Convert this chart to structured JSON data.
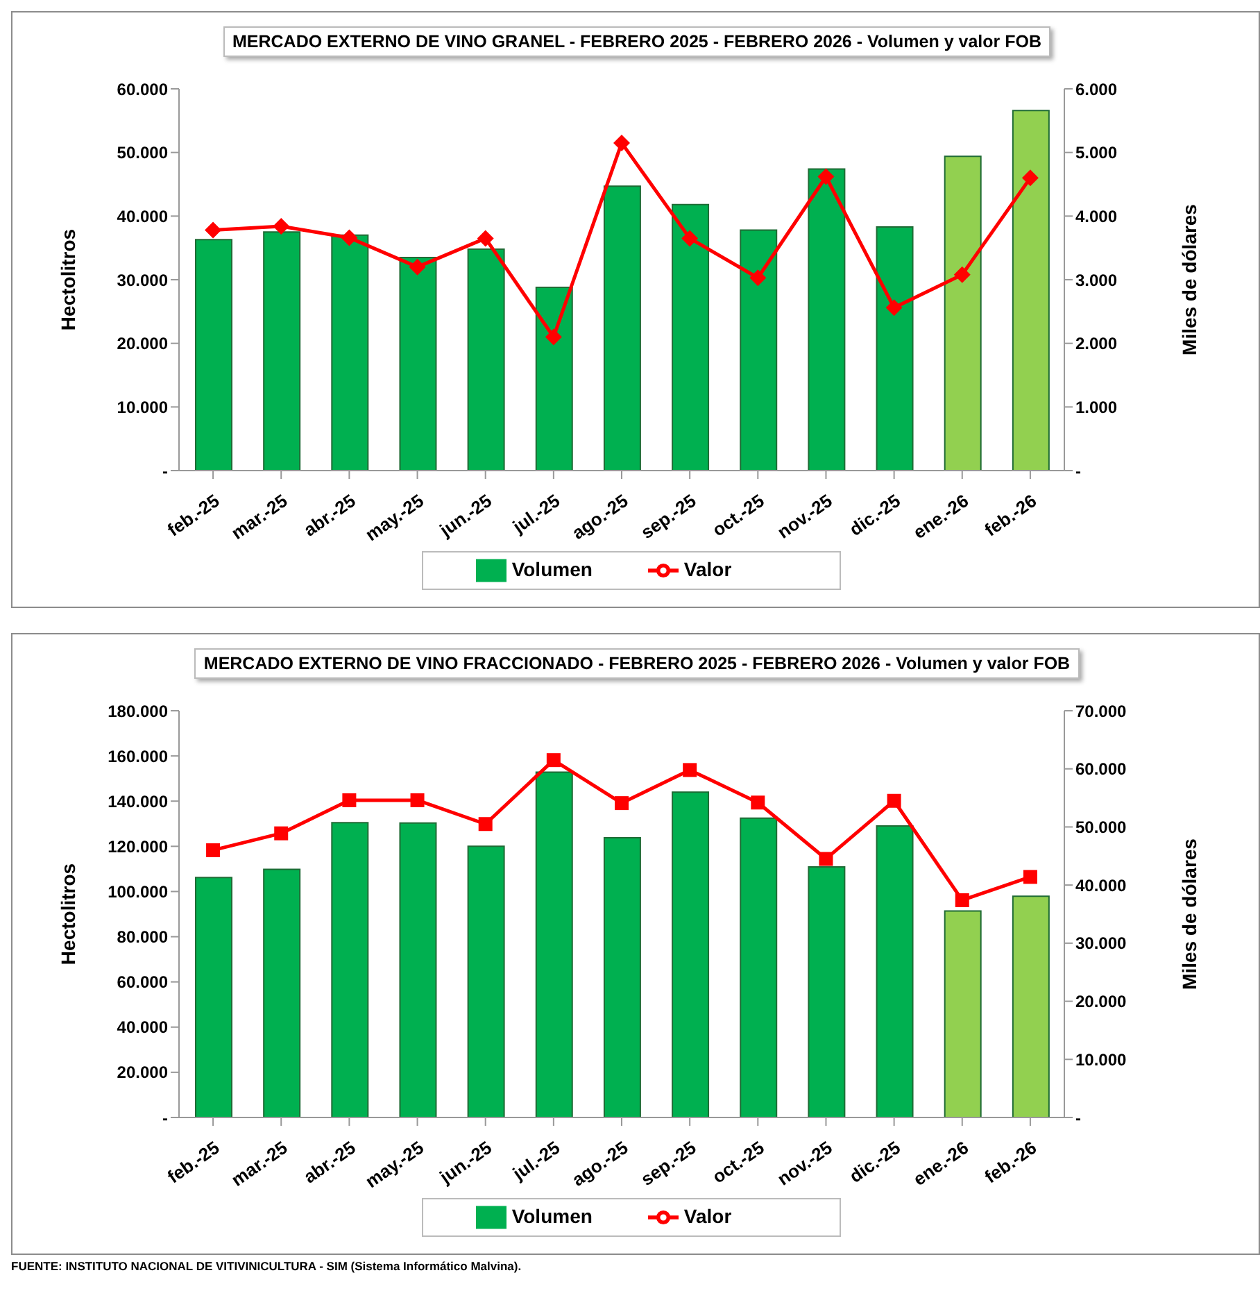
{
  "chart_data": [
    {
      "type": "bar",
      "title": "MERCADO EXTERNO DE VINO GRANEL - FEBRERO 2025 - FEBRERO 2026 - Volumen y valor FOB",
      "ylabel": "Hectolitros",
      "y2label": "Miles de dólares",
      "categories": [
        "feb.-25",
        "mar.-25",
        "abr.-25",
        "may.-25",
        "jun.-25",
        "jul.-25",
        "ago.-25",
        "sep.-25",
        "oct.-25",
        "nov.-25",
        "dic.-25",
        "ene.-26",
        "feb.-26"
      ],
      "series": [
        {
          "name": "Volumen",
          "color": "#00b050",
          "colors": [
            "#00b050",
            "#00b050",
            "#00b050",
            "#00b050",
            "#00b050",
            "#00b050",
            "#00b050",
            "#00b050",
            "#00b050",
            "#00b050",
            "#00b050",
            "#92d050",
            "#92d050"
          ],
          "values": [
            36300,
            37500,
            37000,
            33500,
            34800,
            28800,
            44700,
            41800,
            37800,
            47400,
            38300,
            49400,
            56600
          ]
        },
        {
          "name": "Valor",
          "type": "line",
          "axis": "y2",
          "color": "#ff0000",
          "marker": "diamond",
          "values": [
            3780,
            3840,
            3660,
            3200,
            3650,
            2100,
            5150,
            3650,
            3030,
            4620,
            2560,
            3080,
            4600
          ]
        }
      ],
      "ylim": [
        0,
        60000
      ],
      "yticks": [
        {
          "value": 0,
          "label": "-"
        },
        {
          "value": 10000,
          "label": "10.000"
        },
        {
          "value": 20000,
          "label": "20.000"
        },
        {
          "value": 30000,
          "label": "30.000"
        },
        {
          "value": 40000,
          "label": "40.000"
        },
        {
          "value": 50000,
          "label": "50.000"
        },
        {
          "value": 60000,
          "label": "60.000"
        }
      ],
      "y2lim": [
        0,
        6000
      ],
      "y2ticks": [
        {
          "value": 0,
          "label": "-"
        },
        {
          "value": 1000,
          "label": "1.000"
        },
        {
          "value": 2000,
          "label": "2.000"
        },
        {
          "value": 3000,
          "label": "3.000"
        },
        {
          "value": 4000,
          "label": "4.000"
        },
        {
          "value": 5000,
          "label": "5.000"
        },
        {
          "value": 6000,
          "label": "6.000"
        }
      ],
      "legend": "bottom"
    },
    {
      "type": "bar",
      "title": "MERCADO EXTERNO DE VINO FRACCIONADO - FEBRERO 2025 - FEBRERO 2026 - Volumen y valor FOB",
      "ylabel": "Hectolitros",
      "y2label": "Miles de dólares",
      "categories": [
        "feb.-25",
        "mar.-25",
        "abr.-25",
        "may.-25",
        "jun.-25",
        "jul.-25",
        "ago.-25",
        "sep.-25",
        "oct.-25",
        "nov.-25",
        "dic.-25",
        "ene.-26",
        "feb.-26"
      ],
      "series": [
        {
          "name": "Volumen",
          "color": "#00b050",
          "colors": [
            "#00b050",
            "#00b050",
            "#00b050",
            "#00b050",
            "#00b050",
            "#00b050",
            "#00b050",
            "#00b050",
            "#00b050",
            "#00b050",
            "#00b050",
            "#92d050",
            "#92d050"
          ],
          "values": [
            106200,
            109800,
            130500,
            130300,
            120000,
            152800,
            123800,
            144000,
            132500,
            110900,
            129000,
            91400,
            97900
          ]
        },
        {
          "name": "Valor",
          "type": "line",
          "axis": "y2",
          "color": "#ff0000",
          "marker": "square",
          "values": [
            46000,
            48900,
            54600,
            54600,
            50500,
            61500,
            54100,
            59800,
            54200,
            44500,
            54500,
            37400,
            41400
          ]
        }
      ],
      "ylim": [
        0,
        180000
      ],
      "yticks": [
        {
          "value": 0,
          "label": "-"
        },
        {
          "value": 20000,
          "label": "20.000"
        },
        {
          "value": 40000,
          "label": "40.000"
        },
        {
          "value": 60000,
          "label": "60.000"
        },
        {
          "value": 80000,
          "label": "80.000"
        },
        {
          "value": 100000,
          "label": "100.000"
        },
        {
          "value": 120000,
          "label": "120.000"
        },
        {
          "value": 140000,
          "label": "140.000"
        },
        {
          "value": 160000,
          "label": "160.000"
        },
        {
          "value": 180000,
          "label": "180.000"
        }
      ],
      "y2lim": [
        0,
        70000
      ],
      "y2ticks": [
        {
          "value": 0,
          "label": "-"
        },
        {
          "value": 10000,
          "label": "10.000"
        },
        {
          "value": 20000,
          "label": "20.000"
        },
        {
          "value": 30000,
          "label": "30.000"
        },
        {
          "value": 40000,
          "label": "40.000"
        },
        {
          "value": 50000,
          "label": "50.000"
        },
        {
          "value": 60000,
          "label": "60.000"
        },
        {
          "value": 70000,
          "label": "70.000"
        }
      ],
      "legend": "bottom",
      "annotations": [
        "FUENTE: INSTITUTO NACIONAL DE VITIVINICULTURA - SIM (Sistema Informático Malvina)."
      ]
    }
  ]
}
